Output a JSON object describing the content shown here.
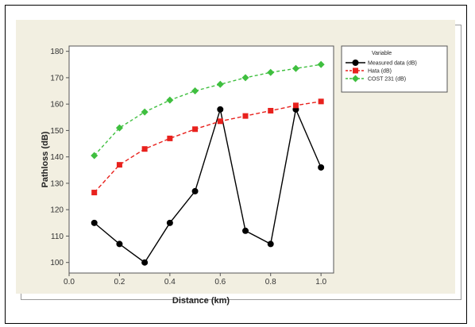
{
  "colors": {
    "panel_bg": "#f2efe1",
    "plot_bg": "#ffffff",
    "measured": "#000000",
    "hata": "#e8211d",
    "cost": "#3fbf3f"
  },
  "chart_data": {
    "type": "line",
    "xlabel": "Distance (km)",
    "ylabel": "Pathloss (dB)",
    "xlim": [
      0.0,
      1.05
    ],
    "ylim": [
      96,
      182
    ],
    "x_ticks": [
      "0.0",
      "0.2",
      "0.4",
      "0.6",
      "0.8",
      "1.0"
    ],
    "y_ticks": [
      "100",
      "110",
      "120",
      "130",
      "140",
      "150",
      "160",
      "170",
      "180"
    ],
    "legend_title": "Variable",
    "legend_position": "right",
    "grid": false,
    "x": [
      0.1,
      0.2,
      0.3,
      0.4,
      0.5,
      0.6,
      0.7,
      0.8,
      0.9,
      1.0
    ],
    "series": [
      {
        "name": "Measured data (dB)",
        "values": [
          115,
          107,
          100,
          115,
          127,
          158,
          112,
          107,
          158,
          136
        ],
        "marker": "circle",
        "line": "solid"
      },
      {
        "name": "Hata (dB)",
        "values": [
          126.5,
          137,
          143,
          147,
          150.5,
          153.5,
          155.5,
          157.5,
          159.5,
          161
        ],
        "marker": "square",
        "line": "dashed"
      },
      {
        "name": "COST 231 (dB)",
        "values": [
          140.5,
          151,
          157,
          161.5,
          165,
          167.5,
          170,
          172,
          173.5,
          175
        ],
        "marker": "diamond",
        "line": "dashed"
      }
    ]
  }
}
